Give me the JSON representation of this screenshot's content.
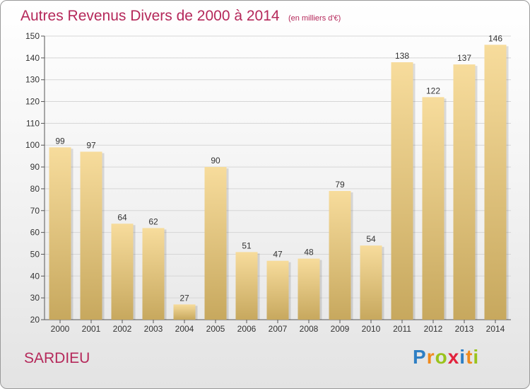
{
  "header": {
    "title": "Autres Revenus Divers de 2000 à 2014",
    "unit": "(en milliers d'€)"
  },
  "footer": {
    "location": "SARDIEU",
    "brand": "Proxiti",
    "brand_letters": [
      {
        "ch": "P",
        "color": "#2e7fc4"
      },
      {
        "ch": "r",
        "color": "#f08a1c"
      },
      {
        "ch": "o",
        "color": "#9ac31c"
      },
      {
        "ch": "x",
        "color": "#e2233d"
      },
      {
        "ch": "i",
        "color": "#2e7fc4"
      },
      {
        "ch": "t",
        "color": "#f08a1c"
      },
      {
        "ch": "i",
        "color": "#9ac31c"
      }
    ]
  },
  "colors": {
    "title": "#b5285a",
    "bar_light": "#f7dc9c",
    "bar_dark": "#c7a85e",
    "grid": "#d6d6d6"
  },
  "chart_data": {
    "type": "bar",
    "title": "Autres Revenus Divers de 2000 à 2014",
    "subtitle": "(en milliers d'€)",
    "categories": [
      "2000",
      "2001",
      "2002",
      "2003",
      "2004",
      "2005",
      "2006",
      "2007",
      "2008",
      "2009",
      "2010",
      "2011",
      "2012",
      "2013",
      "2014"
    ],
    "values": [
      99,
      97,
      64,
      62,
      27,
      90,
      51,
      47,
      48,
      79,
      54,
      138,
      122,
      137,
      146
    ],
    "yticks": [
      20,
      30,
      40,
      50,
      60,
      70,
      80,
      90,
      100,
      110,
      120,
      130,
      140,
      150
    ],
    "ylim": [
      20,
      150
    ],
    "grid": true,
    "data_labels": true
  }
}
